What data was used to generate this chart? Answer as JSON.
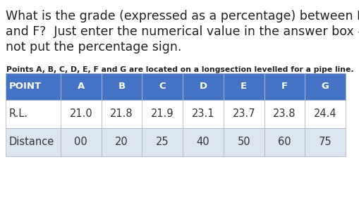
{
  "question_lines": [
    "What is the grade (expressed as a percentage) between D",
    "and F?  Just enter the numerical value in the answer box - do",
    "not put the percentage sign."
  ],
  "subtitle": "Points A, B, C, D, E, F and G are located on a longsection levelled for a pipe line.",
  "header_row": [
    "POINT",
    "A",
    "B",
    "C",
    "D",
    "E",
    "F",
    "G"
  ],
  "data_rows": [
    [
      "R.L.",
      "21.0",
      "21.8",
      "21.9",
      "23.1",
      "23.7",
      "23.8",
      "24.4"
    ],
    [
      "Distance",
      "00",
      "20",
      "25",
      "40",
      "50",
      "60",
      "75"
    ]
  ],
  "header_bg": "#4472C4",
  "header_text_color": "#FFFFFF",
  "row1_bg": "#FFFFFF",
  "row2_bg": "#DCE6F1",
  "bg_color": "#FFFFFF",
  "question_fontsize": 12.5,
  "subtitle_fontsize": 7.8,
  "table_header_fontsize": 9.5,
  "table_data_fontsize": 10.5
}
